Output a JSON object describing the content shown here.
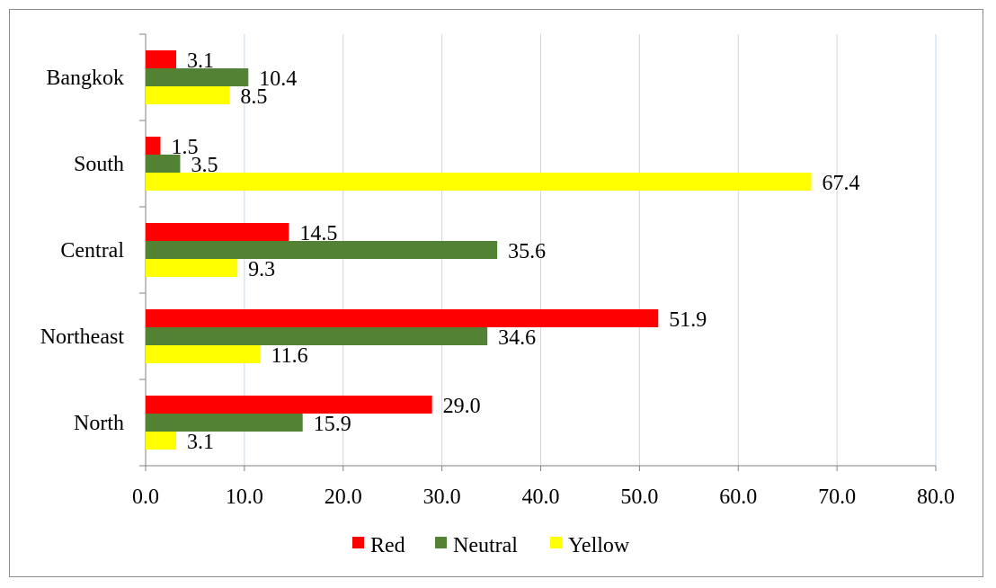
{
  "chart_data": {
    "type": "bar",
    "orientation": "horizontal",
    "title": "",
    "xlabel": "",
    "ylabel": "",
    "categories": [
      "North",
      "Northeast",
      "Central",
      "South",
      "Bangkok"
    ],
    "series": [
      {
        "name": "Red",
        "color": "#ff0000",
        "values": [
          29.0,
          51.9,
          14.5,
          1.5,
          3.1
        ],
        "labels": [
          "29.0",
          "51.9",
          "14.5",
          "1.5",
          "3.1"
        ]
      },
      {
        "name": "Neutral",
        "color": "#548235",
        "values": [
          15.9,
          34.6,
          35.6,
          3.5,
          10.4
        ],
        "labels": [
          "15.9",
          "34.6",
          "35.6",
          "3.5",
          "10.4"
        ]
      },
      {
        "name": "Yellow",
        "color": "#ffff00",
        "values": [
          3.1,
          11.6,
          9.3,
          67.4,
          8.5
        ],
        "labels": [
          "3.1",
          "11.6",
          "9.3",
          "67.4",
          "8.5"
        ]
      }
    ],
    "xlim": [
      0,
      80
    ],
    "x_ticks": [
      "0.0",
      "10.0",
      "20.0",
      "30.0",
      "40.0",
      "50.0",
      "60.0",
      "70.0",
      "80.0"
    ],
    "grid": "vertical",
    "grid_color": "#c5d9e8",
    "legend_position": "bottom"
  }
}
